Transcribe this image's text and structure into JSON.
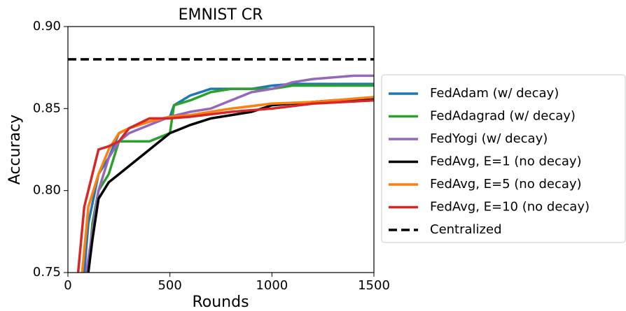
{
  "chart_data": {
    "type": "line",
    "title": "EMNIST CR",
    "x_label": "Rounds",
    "y_label": "Accuracy",
    "xlim": [
      0,
      1500
    ],
    "ylim": [
      0.75,
      0.9
    ],
    "xticks": [
      0,
      500,
      1000,
      1500
    ],
    "yticks": [
      0.75,
      {
        "value": 0.8,
        "label": "0.80"
      },
      0.85,
      {
        "value": 0.9,
        "label": "0.90"
      }
    ],
    "legend": "right",
    "series": [
      {
        "name": "FedAdam (w/ decay)",
        "color": "#1f77b4",
        "linestyle": "solid",
        "x": [
          80,
          100,
          150,
          200,
          250,
          300,
          400,
          500,
          520,
          600,
          700,
          800,
          900,
          1000,
          1100,
          1500
        ],
        "values": [
          0.75,
          0.78,
          0.81,
          0.82,
          0.835,
          0.838,
          0.842,
          0.845,
          0.852,
          0.858,
          0.862,
          0.862,
          0.862,
          0.864,
          0.865,
          0.865
        ]
      },
      {
        "name": "FedAdagrad (w/ decay)",
        "color": "#2ca02c",
        "linestyle": "solid",
        "x": [
          100,
          120,
          150,
          200,
          250,
          300,
          400,
          500,
          520,
          600,
          700,
          800,
          1000,
          1100,
          1500
        ],
        "values": [
          0.75,
          0.78,
          0.8,
          0.81,
          0.83,
          0.83,
          0.83,
          0.835,
          0.852,
          0.855,
          0.86,
          0.862,
          0.862,
          0.864,
          0.864
        ]
      },
      {
        "name": "FedYogi (w/ decay)",
        "color": "#9467bd",
        "linestyle": "solid",
        "x": [
          90,
          150,
          200,
          250,
          300,
          400,
          500,
          600,
          700,
          800,
          900,
          1000,
          1100,
          1200,
          1400,
          1500
        ],
        "values": [
          0.75,
          0.8,
          0.82,
          0.83,
          0.835,
          0.84,
          0.845,
          0.848,
          0.85,
          0.855,
          0.86,
          0.862,
          0.866,
          0.868,
          0.87,
          0.87
        ]
      },
      {
        "name": "FedAvg, E=1 (no decay)",
        "color": "#000000",
        "linestyle": "solid",
        "x": [
          100,
          120,
          150,
          200,
          250,
          300,
          400,
          500,
          600,
          700,
          800,
          900,
          1000,
          1100,
          1300,
          1500
        ],
        "values": [
          0.75,
          0.77,
          0.795,
          0.805,
          0.81,
          0.815,
          0.825,
          0.835,
          0.84,
          0.844,
          0.846,
          0.848,
          0.852,
          0.853,
          0.855,
          0.856
        ]
      },
      {
        "name": "FedAvg, E=5 (no decay)",
        "color": "#ff7f0e",
        "linestyle": "solid",
        "x": [
          70,
          100,
          150,
          200,
          250,
          300,
          400,
          500,
          600,
          700,
          800,
          1000,
          1200,
          1500
        ],
        "values": [
          0.75,
          0.79,
          0.81,
          0.825,
          0.835,
          0.838,
          0.842,
          0.845,
          0.846,
          0.848,
          0.85,
          0.853,
          0.854,
          0.857
        ]
      },
      {
        "name": "FedAvg, E=10 (no decay)",
        "color": "#d62728",
        "linestyle": "solid",
        "x": [
          50,
          80,
          100,
          150,
          200,
          250,
          300,
          400,
          500,
          600,
          800,
          1000,
          1200,
          1500
        ],
        "values": [
          0.75,
          0.79,
          0.8,
          0.825,
          0.827,
          0.83,
          0.838,
          0.844,
          0.844,
          0.845,
          0.848,
          0.85,
          0.853,
          0.855
        ]
      },
      {
        "name": "Centralized",
        "color": "#000000",
        "linestyle": "dashed",
        "x": [
          0,
          1500
        ],
        "values": [
          0.88,
          0.88
        ]
      }
    ]
  }
}
